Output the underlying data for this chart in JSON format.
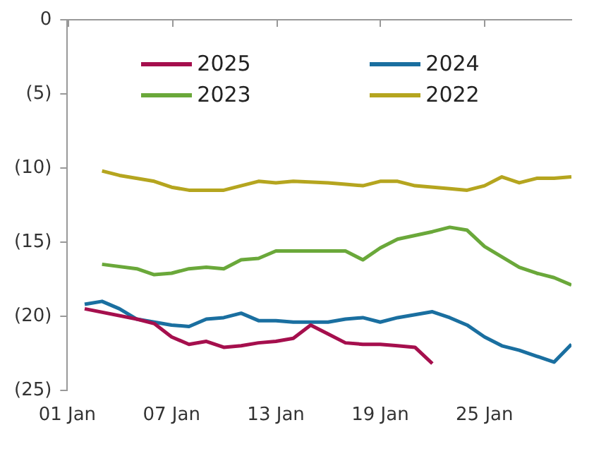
{
  "chart_data": {
    "type": "line",
    "xlim": [
      "--01-01",
      "--01-30"
    ],
    "xticks": [
      {
        "value": "--01-01",
        "label": "01 Jan"
      },
      {
        "value": "--01-07",
        "label": "07 Jan"
      },
      {
        "value": "--01-13",
        "label": "13 Jan"
      },
      {
        "value": "--01-19",
        "label": "19 Jan"
      },
      {
        "value": "--01-25",
        "label": "25 Jan"
      }
    ],
    "ylim": [
      -25,
      0
    ],
    "yticks": [
      {
        "value": -25,
        "label": "(25)"
      },
      {
        "value": -20,
        "label": "(20)"
      },
      {
        "value": -15,
        "label": "(15)"
      },
      {
        "value": -10,
        "label": "(10)"
      },
      {
        "value": -5,
        "label": "(5)"
      },
      0
    ],
    "grid": false,
    "legend": "top",
    "marker": "none",
    "line_style": "solid",
    "series": [
      {
        "name": "2025",
        "color": "#a50f4d",
        "x": [
          "--01-02",
          "--01-05",
          "--01-06",
          "--01-07",
          "--01-08",
          "--01-09",
          "--01-10",
          "--01-11",
          "--01-12",
          "--01-13",
          "--01-14",
          "--01-15",
          "--01-16",
          "--01-17",
          "--01-18",
          "--01-19",
          "--01-20",
          "--01-21",
          "--01-22"
        ],
        "values": [
          -19.5,
          -20.2,
          -20.5,
          -21.4,
          -21.9,
          -21.7,
          -22.1,
          -22.0,
          -21.8,
          -21.7,
          -21.5,
          -20.6,
          -21.2,
          -21.8,
          -21.9,
          -21.9,
          -22.0,
          -22.1,
          -23.2
        ]
      },
      {
        "name": "2024",
        "color": "#1a6fa0",
        "x": [
          "--01-02",
          "--01-03",
          "--01-04",
          "--01-05",
          "--01-06",
          "--01-07",
          "--01-08",
          "--01-09",
          "--01-10",
          "--01-11",
          "--01-12",
          "--01-13",
          "--01-14",
          "--01-16",
          "--01-17",
          "--01-18",
          "--01-19",
          "--01-20",
          "--01-22",
          "--01-23",
          "--01-24",
          "--01-25",
          "--01-26",
          "--01-27",
          "--01-28",
          "--01-29",
          "--01-30"
        ],
        "values": [
          -19.2,
          -19.0,
          -19.5,
          -20.2,
          -20.4,
          -20.6,
          -20.7,
          -20.2,
          -20.1,
          -19.8,
          -20.3,
          -20.3,
          -20.4,
          -20.4,
          -20.2,
          -20.1,
          -20.4,
          -20.1,
          -19.7,
          -20.1,
          -20.6,
          -21.4,
          -22.0,
          -22.3,
          -22.7,
          -23.1,
          -21.9
        ]
      },
      {
        "name": "2023",
        "color": "#6aa83a",
        "x": [
          "--01-03",
          "--01-05",
          "--01-06",
          "--01-07",
          "--01-08",
          "--01-09",
          "--01-10",
          "--01-11",
          "--01-12",
          "--01-13",
          "--01-14",
          "--01-16",
          "--01-17",
          "--01-18",
          "--01-19",
          "--01-20",
          "--01-22",
          "--01-23",
          "--01-24",
          "--01-25",
          "--01-26",
          "--01-27",
          "--01-28",
          "--01-29",
          "--01-30"
        ],
        "values": [
          -16.5,
          -16.8,
          -17.2,
          -17.1,
          -16.8,
          -16.7,
          -16.8,
          -16.2,
          -16.1,
          -15.6,
          -15.6,
          -15.6,
          -15.6,
          -16.2,
          -15.4,
          -14.8,
          -14.3,
          -14.0,
          -14.2,
          -15.3,
          -16.0,
          -16.7,
          -17.1,
          -17.4,
          -17.9
        ]
      },
      {
        "name": "2022",
        "color": "#b5a51f",
        "x": [
          "--01-03",
          "--01-04",
          "--01-06",
          "--01-07",
          "--01-08",
          "--01-10",
          "--01-11",
          "--01-12",
          "--01-13",
          "--01-14",
          "--01-16",
          "--01-17",
          "--01-18",
          "--01-19",
          "--01-20",
          "--01-21",
          "--01-23",
          "--01-24",
          "--01-25",
          "--01-26",
          "--01-27",
          "--01-28",
          "--01-29",
          "--01-30"
        ],
        "values": [
          -10.2,
          -10.5,
          -10.9,
          -11.3,
          -11.5,
          -11.5,
          -11.2,
          -10.9,
          -11.0,
          -10.9,
          -11.0,
          -11.1,
          -11.2,
          -10.9,
          -10.9,
          -11.2,
          -11.4,
          -11.5,
          -11.2,
          -10.6,
          -11.0,
          -10.7,
          -10.7,
          -10.6
        ]
      }
    ]
  }
}
